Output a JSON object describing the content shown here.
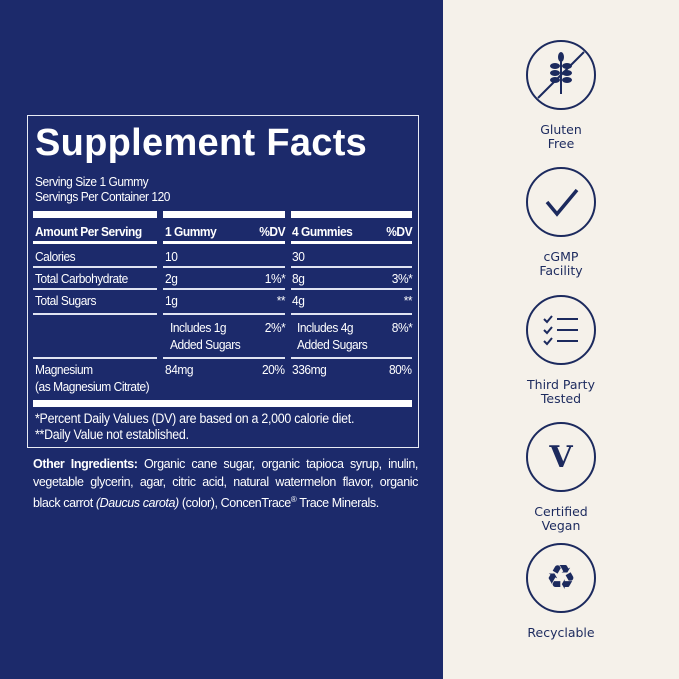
{
  "facts": {
    "title": "Supplement Facts",
    "serving_size": "Serving Size 1 Gummy",
    "servings_per_container": "Servings Per Container 120",
    "headers": [
      "Amount Per Serving",
      "1 Gummy",
      "%DV",
      "4 Gummies",
      "%DV"
    ],
    "rows": [
      {
        "label": "Calories",
        "a1": "10",
        "dv1": "",
        "a4": "30",
        "dv4": ""
      },
      {
        "label": "Total Carbohydrate",
        "a1": "2g",
        "dv1": "1%*",
        "a4": "8g",
        "dv4": "3%*"
      },
      {
        "label": "Total Sugars",
        "a1": "1g",
        "dv1": "**",
        "a4": "4g",
        "dv4": "**"
      },
      {
        "label": "",
        "a1": "Includes 1g",
        "a1b": "Added Sugars",
        "dv1": "2%*",
        "a4": "Includes 4g",
        "a4b": "Added Sugars",
        "dv4": "8%*"
      },
      {
        "label": "Magnesium",
        "label2": "(as Magnesium Citrate)",
        "a1": "84mg",
        "dv1": "20%",
        "a4": "336mg",
        "dv4": "80%"
      }
    ],
    "footnote1": "*Percent Daily Values (DV) are based on a 2,000 calorie diet.",
    "footnote2": "**Daily Value not established."
  },
  "ingredients": {
    "label": "Other Ingredients:",
    "text1": " Organic cane sugar, organic tapioca syrup, inulin, vegetable glycerin, agar, citric acid, natural watermelon flavor, organic black carrot ",
    "italic": "(Daucus carota)",
    "text2": " (color), ConcenTrace",
    "reg": "®",
    "text3": " Trace Minerals."
  },
  "badges": [
    {
      "icon": "wheat-crossed-icon",
      "line1": "Gluten",
      "line2": "Free"
    },
    {
      "icon": "checkmark-icon",
      "line1": "cGMP",
      "line2": "Facility"
    },
    {
      "icon": "checklist-icon",
      "line1": "Third Party",
      "line2": "Tested"
    },
    {
      "icon": "vegan-v-icon",
      "line1": "Certified",
      "line2": "Vegan"
    },
    {
      "icon": "recycle-icon",
      "line1": "Recyclable",
      "line2": ""
    }
  ],
  "colors": {
    "navy": "#1c2a6b",
    "cream": "#f5f1ea",
    "icon": "#1c2a5e"
  }
}
